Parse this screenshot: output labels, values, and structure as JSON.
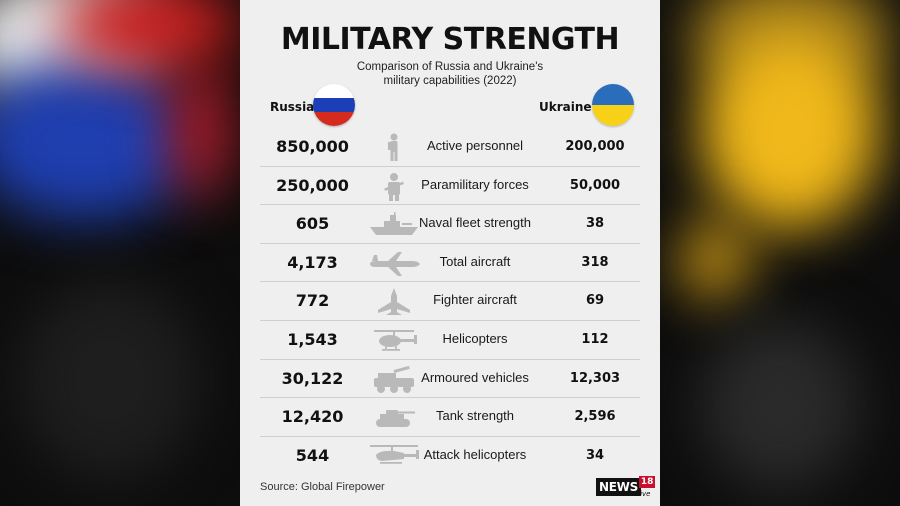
{
  "title": "MILITARY STRENGTH",
  "subtitle_line1": "Comparison of Russia and Ukraine's",
  "subtitle_line2": "military capabilities (2022)",
  "source": "Source: Global Firepower",
  "logo": {
    "main": "NEWS",
    "number": "18",
    "sub": "creative"
  },
  "colors": {
    "card_bg": "#efefef",
    "russia_flag": [
      "#ffffff",
      "#1c3fb7",
      "#d52b1e"
    ],
    "ukraine_flag": [
      "#2a6ebb",
      "#f7d117"
    ],
    "logo_red": "#c8102e"
  },
  "chart_data": {
    "type": "table",
    "title": "MILITARY STRENGTH",
    "subtitle": "Comparison of Russia and Ukraine's military capabilities (2022)",
    "columns": [
      "Russia",
      "Ukraine"
    ],
    "rows": [
      {
        "label": "Active personnel",
        "icon": "soldier-icon",
        "russia": "850,000",
        "ukraine": "200,000"
      },
      {
        "label": "Paramilitary forces",
        "icon": "paramilitary-icon",
        "russia": "250,000",
        "ukraine": "50,000"
      },
      {
        "label": "Naval fleet strength",
        "icon": "ship-icon",
        "russia": "605",
        "ukraine": "38"
      },
      {
        "label": "Total aircraft",
        "icon": "airplane-icon",
        "russia": "4,173",
        "ukraine": "318"
      },
      {
        "label": "Fighter aircraft",
        "icon": "fighter-jet-icon",
        "russia": "772",
        "ukraine": "69"
      },
      {
        "label": "Helicopters",
        "icon": "helicopter-icon",
        "russia": "1,543",
        "ukraine": "112"
      },
      {
        "label": "Armoured vehicles",
        "icon": "armoured-vehicle-icon",
        "russia": "30,122",
        "ukraine": "12,303"
      },
      {
        "label": "Tank strength",
        "icon": "tank-icon",
        "russia": "12,420",
        "ukraine": "2,596"
      },
      {
        "label": "Attack helicopters",
        "icon": "attack-helicopter-icon",
        "russia": "544",
        "ukraine": "34"
      }
    ]
  }
}
